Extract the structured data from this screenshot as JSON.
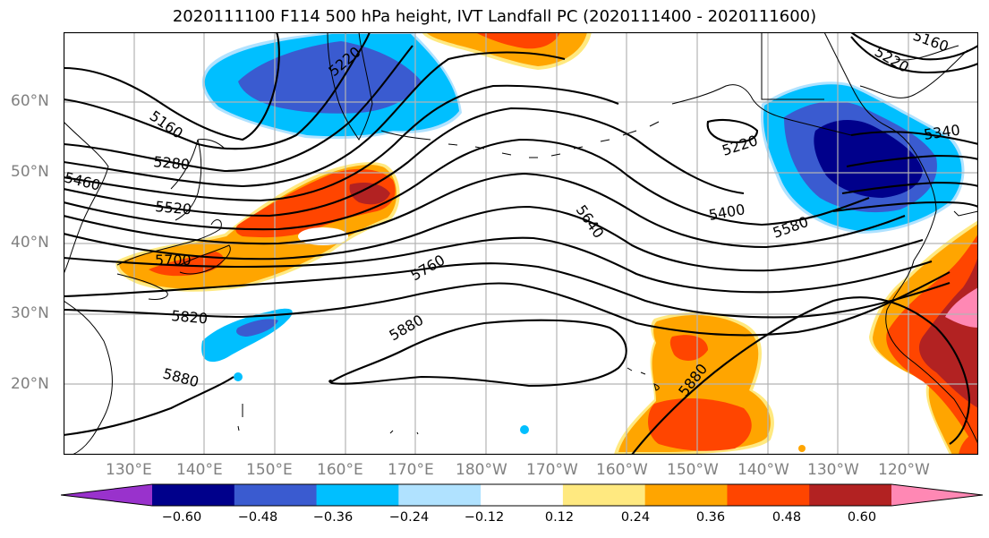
{
  "title": "2020111100 F114 500 hPa height, IVT Landfall PC (2020111400 - 2020111600)",
  "map": {
    "lat_labels": [
      "60°N",
      "50°N",
      "40°N",
      "30°N",
      "20°N"
    ],
    "lon_labels": [
      "130°E",
      "140°E",
      "150°E",
      "160°E",
      "170°E",
      "180°W",
      "170°W",
      "160°W",
      "150°W",
      "140°W",
      "130°W",
      "120°W"
    ],
    "contour_labels": [
      "5160",
      "5220",
      "5280",
      "5460",
      "5520",
      "5700",
      "5820",
      "5880",
      "5640",
      "5760",
      "5880",
      "5220",
      "5400",
      "5580",
      "5340",
      "5220",
      "5160",
      "5880"
    ],
    "colors": {
      "purple": "#9932cc",
      "navy": "#00008b",
      "royal_blue": "#3a5bd0",
      "deep_sky_blue": "#00bfff",
      "light_blue": "#b0e2ff",
      "yellow": "#ffe980",
      "orange": "#ffa500",
      "orange_red": "#ff4500",
      "firebrick": "#b22222",
      "pink": "#ff88b4"
    }
  },
  "colorbar": {
    "ticks": [
      "−0.60",
      "−0.48",
      "−0.36",
      "−0.24",
      "−0.12",
      "0.12",
      "0.24",
      "0.36",
      "0.48",
      "0.60"
    ],
    "colors": [
      "#9932cc",
      "#00008b",
      "#3a5bd0",
      "#00bfff",
      "#b0e2ff",
      "#ffffff",
      "#ffe980",
      "#ffa500",
      "#ff4500",
      "#b22222",
      "#ff88b4"
    ]
  }
}
